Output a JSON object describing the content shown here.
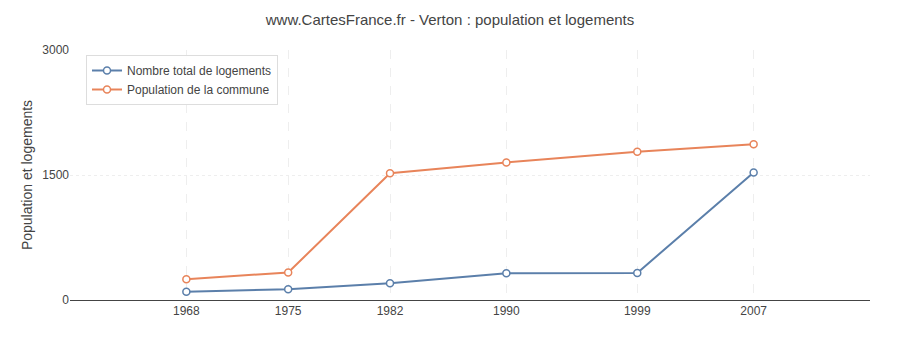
{
  "chart_data": {
    "type": "line",
    "title": "www.CartesFrance.fr - Verton : population et logements",
    "ylabel": "Population et logements",
    "x": [
      1968,
      1975,
      1982,
      1990,
      1999,
      2007
    ],
    "series": [
      {
        "name": "Nombre total de logements",
        "color": "#5b7faa",
        "values": [
          100,
          130,
          200,
          320,
          325,
          1530
        ]
      },
      {
        "name": "Population de la commune",
        "color": "#e8845a",
        "values": [
          250,
          330,
          1520,
          1650,
          1780,
          1870
        ]
      }
    ],
    "xlim": [
      1960,
      2015
    ],
    "xticks": [
      1968,
      1975,
      1982,
      1990,
      1999,
      2007
    ],
    "ylim": [
      0,
      3000
    ],
    "yticks": [
      0,
      1500,
      3000
    ],
    "grid": true,
    "legend": "upper left",
    "marker": "circle"
  }
}
